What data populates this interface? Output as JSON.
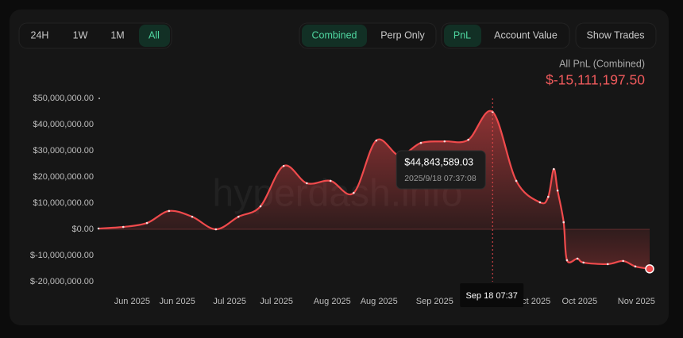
{
  "controls": {
    "ranges": [
      "24H",
      "1W",
      "1M",
      "All"
    ],
    "modes": [
      "Combined",
      "Perp Only"
    ],
    "metrics": [
      "PnL",
      "Account Value"
    ],
    "trades": "Show Trades"
  },
  "summary": {
    "label": "All PnL (Combined)",
    "value_label": "$-15,111,197.50"
  },
  "watermark": "hyperdash.info",
  "chart_data": {
    "type": "line",
    "x": [
      0,
      4.5,
      8.8,
      12.8,
      17.0,
      21.3,
      25.4,
      29.4,
      33.6,
      37.8,
      42.1,
      46.3,
      50.4,
      54.6,
      58.5,
      62.8,
      67.1,
      71.5,
      75.8,
      80.1,
      81.6,
      82.6,
      83.3,
      84.4,
      85.0,
      86.9,
      88.0,
      92.4,
      95.2,
      97.4,
      100
    ],
    "series": [
      {
        "name": "PnL",
        "color": "#ef4a4c",
        "values": [
          300000,
          900000,
          2400000,
          7000000,
          4800000,
          0,
          4800000,
          8800000,
          24200000,
          17600000,
          18500000,
          13900000,
          33900000,
          28200000,
          33000000,
          33600000,
          34200000,
          44843589.03,
          18500000,
          10300000,
          12400000,
          23000000,
          14800000,
          2700000,
          -11800000,
          -11200000,
          -12700000,
          -13300000,
          -12100000,
          -14200000,
          -15111197.5
        ]
      }
    ],
    "xlim": [
      0,
      100
    ],
    "xticks": [
      {
        "value": 6.1,
        "label": "Jun 2025"
      },
      {
        "value": 14.3,
        "label": "Jun 2025"
      },
      {
        "value": 23.8,
        "label": "Jul 2025"
      },
      {
        "value": 32.3,
        "label": "Jul 2025"
      },
      {
        "value": 42.4,
        "label": "Aug 2025"
      },
      {
        "value": 50.9,
        "label": "Aug 2025"
      },
      {
        "value": 61.0,
        "label": "Sep 2025"
      },
      {
        "value": 69.6,
        "label": "Sep 2025"
      },
      {
        "value": 78.8,
        "label": "Oct 2025"
      },
      {
        "value": 87.3,
        "label": "Oct 2025"
      },
      {
        "value": 97.6,
        "label": "Nov 2025"
      }
    ],
    "ylim": [
      -20000000,
      50000000
    ],
    "yticks": [
      {
        "value": 50000000,
        "label": "$50,000,000.00"
      },
      {
        "value": 40000000,
        "label": "$40,000,000.00"
      },
      {
        "value": 30000000,
        "label": "$30,000,000.00"
      },
      {
        "value": 20000000,
        "label": "$20,000,000.00"
      },
      {
        "value": 10000000,
        "label": "$10,000,000.00"
      },
      {
        "value": 0,
        "label": "$0.00"
      },
      {
        "value": -10000000,
        "label": "$-10,000,000.00"
      },
      {
        "value": -20000000,
        "label": "$-20,000,000.00"
      }
    ],
    "tooltip": {
      "index": 17,
      "value_label": "$44,843,589.03",
      "time": "2025/9/18 07:37:08",
      "crosshair_label": "Sep 18 07:37"
    }
  }
}
